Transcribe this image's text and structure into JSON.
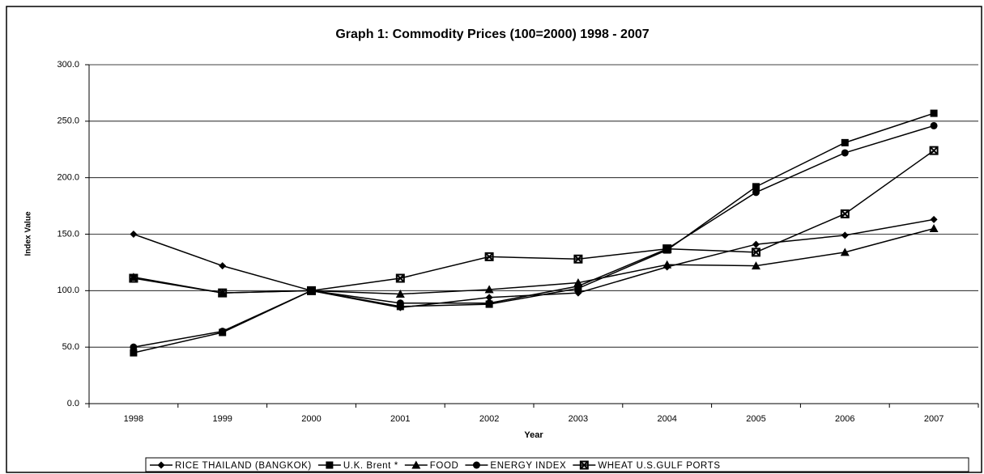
{
  "chart_data": {
    "type": "line",
    "title": "Graph 1: Commodity Prices (100=2000) 1998 - 2007",
    "x_label": "Year",
    "y_label": "Index Value",
    "categories": [
      "1998",
      "1999",
      "2000",
      "2001",
      "2002",
      "2003",
      "2004",
      "2005",
      "2006",
      "2007"
    ],
    "series": [
      {
        "name": "RICE THAILAND (BANGKOK)",
        "color": "#000000",
        "marker": "diamond",
        "values": [
          150,
          122,
          100,
          85,
          94,
          98,
          121,
          141,
          149,
          163
        ]
      },
      {
        "name": "U.K. Brent *",
        "color": "#000000",
        "marker": "square",
        "values": [
          45,
          63,
          100,
          86,
          88,
          102,
          136,
          192,
          231,
          257
        ]
      },
      {
        "name": "FOOD",
        "color": "#000000",
        "marker": "triangle",
        "values": [
          112,
          98,
          100,
          97,
          101,
          107,
          123,
          122,
          134,
          155
        ]
      },
      {
        "name": "ENERGY INDEX",
        "color": "#000000",
        "marker": "circle",
        "values": [
          50,
          64,
          100,
          89,
          89,
          104,
          137,
          187,
          222,
          246
        ]
      },
      {
        "name": "WHEAT U.S.GULF PORTS",
        "color": "#000000",
        "marker": "star-square",
        "values": [
          111,
          98,
          100,
          111,
          130,
          128,
          137,
          134,
          168,
          224
        ]
      }
    ],
    "ylim": [
      0,
      300
    ],
    "yticks": [
      {
        "value": 0,
        "label": "0.0"
      },
      {
        "value": 50,
        "label": "50.0"
      },
      {
        "value": 100,
        "label": "100.0"
      },
      {
        "value": 150,
        "label": "150.0"
      },
      {
        "value": 200,
        "label": "200.0"
      },
      {
        "value": 250,
        "label": "250.0"
      },
      {
        "value": 300,
        "label": "300.0"
      }
    ],
    "grid": true,
    "legend": "bottom"
  }
}
